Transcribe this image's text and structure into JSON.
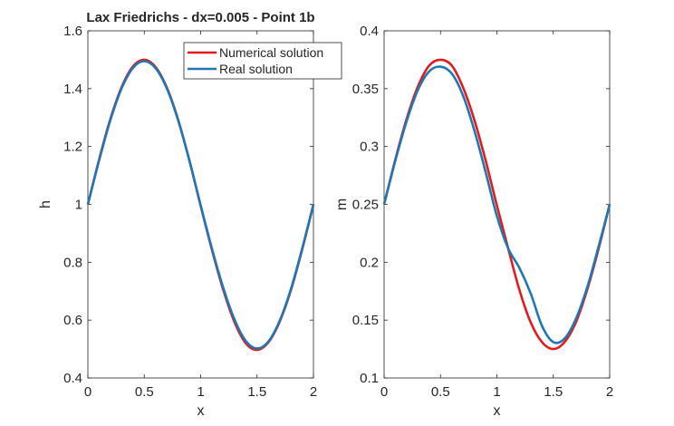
{
  "chart_data": [
    {
      "type": "line",
      "title": "Lax Friedrichs - dx=0.005 - Point 1b",
      "xlabel": "x",
      "ylabel": "h",
      "xlim": [
        0,
        2
      ],
      "ylim": [
        0.4,
        1.6
      ],
      "xticks": [
        "0",
        "0.5",
        "1",
        "1.5",
        "2"
      ],
      "yticks": [
        "0.4",
        "0.6",
        "0.8",
        "1",
        "1.2",
        "1.4",
        "1.6"
      ],
      "grid": false,
      "legend": "top-right",
      "x": [
        0,
        0.1,
        0.2,
        0.3,
        0.4,
        0.5,
        0.6,
        0.7,
        0.8,
        0.9,
        1.0,
        1.1,
        1.2,
        1.3,
        1.4,
        1.5,
        1.6,
        1.7,
        1.8,
        1.9,
        2.0
      ],
      "series": [
        {
          "name": "Numerical solution",
          "color": "#e41a1c",
          "values": [
            1.0,
            1.156,
            1.296,
            1.406,
            1.477,
            1.5,
            1.475,
            1.404,
            1.293,
            1.152,
            0.995,
            0.843,
            0.705,
            0.593,
            0.52,
            0.497,
            0.523,
            0.594,
            0.703,
            0.844,
            1.0
          ]
        },
        {
          "name": "Real solution",
          "color": "#1f77b4",
          "values": [
            1.0,
            1.153,
            1.292,
            1.402,
            1.472,
            1.495,
            1.471,
            1.401,
            1.291,
            1.152,
            0.997,
            0.847,
            0.712,
            0.602,
            0.528,
            0.502,
            0.526,
            0.597,
            0.707,
            0.847,
            1.0
          ]
        }
      ]
    },
    {
      "type": "line",
      "title": "",
      "xlabel": "x",
      "ylabel": "m",
      "xlim": [
        0,
        2
      ],
      "ylim": [
        0.1,
        0.4
      ],
      "xticks": [
        "0",
        "0.5",
        "1",
        "1.5",
        "2"
      ],
      "yticks": [
        "0.1",
        "0.15",
        "0.2",
        "0.25",
        "0.3",
        "0.35",
        "0.4"
      ],
      "grid": false,
      "x": [
        0,
        0.1,
        0.2,
        0.3,
        0.4,
        0.5,
        0.6,
        0.7,
        0.8,
        0.9,
        1.0,
        1.1,
        1.2,
        1.3,
        1.4,
        1.5,
        1.6,
        1.7,
        1.8,
        1.9,
        2.0
      ],
      "series": [
        {
          "name": "Numerical solution",
          "color": "#e41a1c",
          "values": [
            0.25,
            0.289,
            0.324,
            0.352,
            0.37,
            0.375,
            0.37,
            0.351,
            0.323,
            0.288,
            0.249,
            0.212,
            0.176,
            0.148,
            0.131,
            0.125,
            0.131,
            0.148,
            0.176,
            0.211,
            0.25
          ]
        },
        {
          "name": "Real solution",
          "color": "#1f77b4",
          "values": [
            0.25,
            0.288,
            0.322,
            0.349,
            0.365,
            0.369,
            0.363,
            0.344,
            0.314,
            0.278,
            0.24,
            0.212,
            0.195,
            0.173,
            0.145,
            0.131,
            0.134,
            0.151,
            0.178,
            0.213,
            0.25
          ]
        }
      ]
    }
  ]
}
